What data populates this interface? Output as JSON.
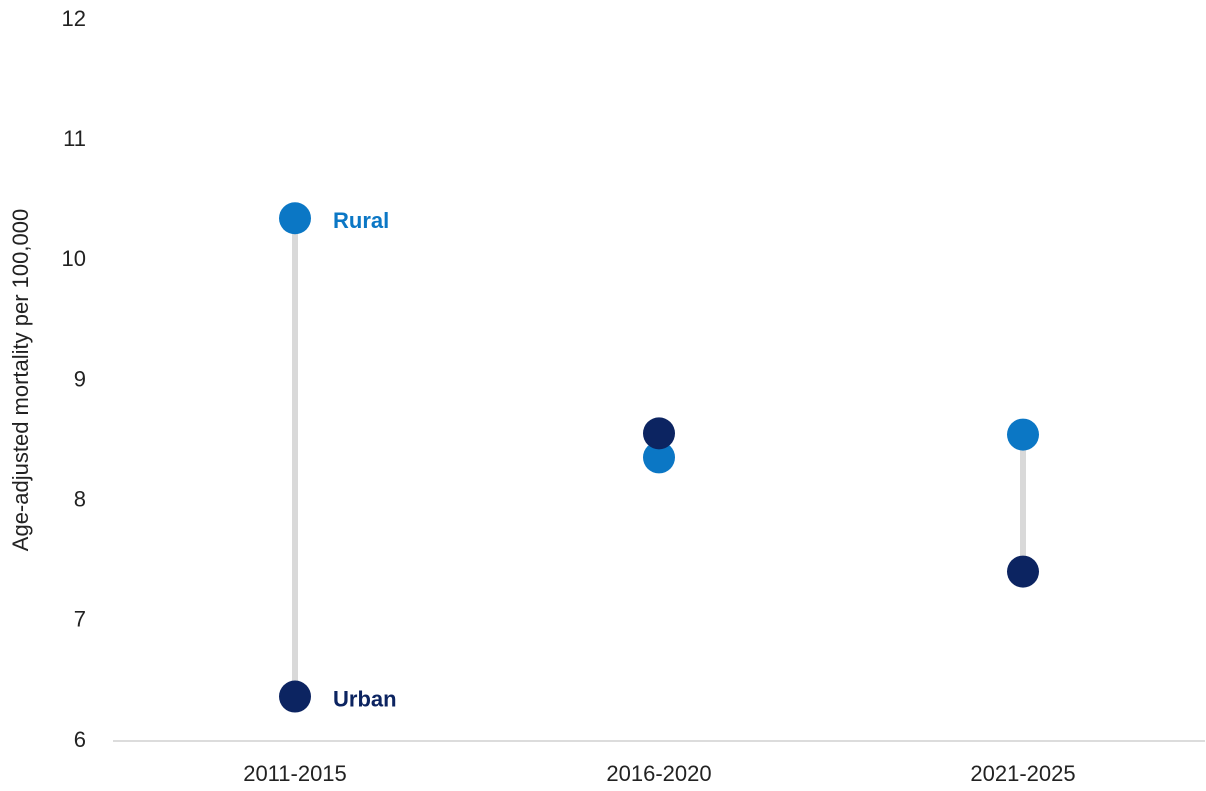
{
  "chart_data": {
    "type": "dumbbell",
    "y_label": "Age-adjusted mortality per 100,000",
    "categories": [
      "2011-2015",
      "2016-2020",
      "2021-2025"
    ],
    "series": [
      {
        "name": "Rural",
        "color": "#0b77c5",
        "values": [
          10.35,
          8.36,
          8.55
        ]
      },
      {
        "name": "Urban",
        "color": "#0c2461",
        "values": [
          6.37,
          8.56,
          7.41
        ]
      }
    ],
    "connector_color": "#d9d9d9",
    "ylim": [
      6,
      12
    ],
    "yticks": [
      6,
      7,
      8,
      9,
      10,
      11,
      12
    ],
    "grid": false
  }
}
